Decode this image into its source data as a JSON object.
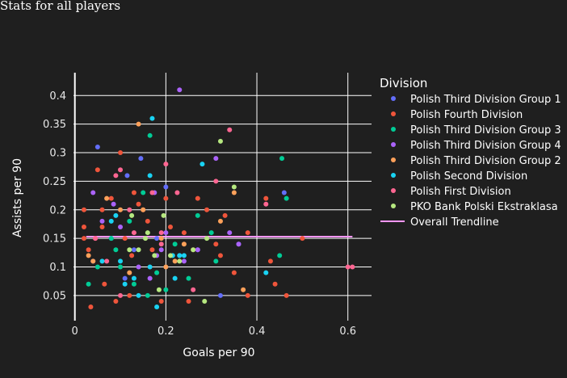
{
  "page_title": "Stats for all players",
  "chart_data": {
    "type": "scatter",
    "title": "Stats for all players",
    "xlabel": "Goals per 90",
    "ylabel": "Assists per 90",
    "xlim": [
      -0.003,
      0.652
    ],
    "ylim": [
      0.006,
      0.44
    ],
    "x_ticks": [
      0,
      0.2,
      0.4,
      0.6
    ],
    "x_tick_labels": [
      "0",
      "0.2",
      "0.4",
      "0.6"
    ],
    "y_ticks": [
      0.05,
      0.1,
      0.15,
      0.2,
      0.25,
      0.3,
      0.35,
      0.4
    ],
    "y_tick_labels": [
      "0.05",
      "0.1",
      "0.15",
      "0.2",
      "0.25",
      "0.3",
      "0.35",
      "0.4"
    ],
    "grid": true,
    "legend_title": "Division",
    "legend_position": "right",
    "series": [
      {
        "name": "Polish Third Division Group 1",
        "color": "#636efa",
        "points": [
          [
            0.05,
            0.31
          ],
          [
            0.115,
            0.26
          ],
          [
            0.145,
            0.29
          ],
          [
            0.2,
            0.24
          ],
          [
            0.46,
            0.23
          ],
          [
            0.08,
            0.15
          ],
          [
            0.04,
            0.11
          ],
          [
            0.13,
            0.13
          ],
          [
            0.18,
            0.15
          ],
          [
            0.23,
            0.12
          ],
          [
            0.32,
            0.05
          ],
          [
            0.36,
            0.14
          ],
          [
            0.11,
            0.08
          ],
          [
            0.27,
            0.13
          ]
        ]
      },
      {
        "name": "Polish Fourth Division",
        "color": "#ef553b",
        "points": [
          [
            0.02,
            0.2
          ],
          [
            0.02,
            0.15
          ],
          [
            0.02,
            0.17
          ],
          [
            0.035,
            0.03
          ],
          [
            0.05,
            0.27
          ],
          [
            0.06,
            0.17
          ],
          [
            0.08,
            0.22
          ],
          [
            0.09,
            0.04
          ],
          [
            0.1,
            0.3
          ],
          [
            0.11,
            0.15
          ],
          [
            0.12,
            0.05
          ],
          [
            0.125,
            0.12
          ],
          [
            0.13,
            0.23
          ],
          [
            0.14,
            0.21
          ],
          [
            0.15,
            0.2
          ],
          [
            0.16,
            0.18
          ],
          [
            0.19,
            0.04
          ],
          [
            0.2,
            0.22
          ],
          [
            0.21,
            0.17
          ],
          [
            0.24,
            0.16
          ],
          [
            0.25,
            0.04
          ],
          [
            0.26,
            0.13
          ],
          [
            0.27,
            0.22
          ],
          [
            0.29,
            0.2
          ],
          [
            0.31,
            0.14
          ],
          [
            0.32,
            0.12
          ],
          [
            0.33,
            0.19
          ],
          [
            0.35,
            0.09
          ],
          [
            0.38,
            0.05
          ],
          [
            0.38,
            0.16
          ],
          [
            0.42,
            0.22
          ],
          [
            0.43,
            0.11
          ],
          [
            0.44,
            0.07
          ],
          [
            0.465,
            0.05
          ],
          [
            0.5,
            0.15
          ],
          [
            0.065,
            0.07
          ],
          [
            0.17,
            0.13
          ],
          [
            0.06,
            0.2
          ],
          [
            0.03,
            0.13
          ],
          [
            0.045,
            0.15
          ]
        ]
      },
      {
        "name": "Polish Third Division Group 3",
        "color": "#00cc96",
        "points": [
          [
            0.03,
            0.07
          ],
          [
            0.05,
            0.1
          ],
          [
            0.08,
            0.15
          ],
          [
            0.1,
            0.1
          ],
          [
            0.12,
            0.18
          ],
          [
            0.13,
            0.07
          ],
          [
            0.15,
            0.23
          ],
          [
            0.165,
            0.33
          ],
          [
            0.18,
            0.09
          ],
          [
            0.2,
            0.06
          ],
          [
            0.22,
            0.14
          ],
          [
            0.25,
            0.08
          ],
          [
            0.27,
            0.19
          ],
          [
            0.3,
            0.16
          ],
          [
            0.31,
            0.11
          ],
          [
            0.45,
            0.12
          ],
          [
            0.455,
            0.29
          ],
          [
            0.465,
            0.22
          ],
          [
            0.16,
            0.05
          ],
          [
            0.09,
            0.13
          ]
        ]
      },
      {
        "name": "Polish Third Division Group 4",
        "color": "#ab63fa",
        "points": [
          [
            0.23,
            0.41
          ],
          [
            0.04,
            0.23
          ],
          [
            0.06,
            0.18
          ],
          [
            0.085,
            0.21
          ],
          [
            0.14,
            0.1
          ],
          [
            0.165,
            0.08
          ],
          [
            0.175,
            0.23
          ],
          [
            0.18,
            0.12
          ],
          [
            0.19,
            0.13
          ],
          [
            0.24,
            0.11
          ],
          [
            0.27,
            0.13
          ],
          [
            0.31,
            0.29
          ],
          [
            0.36,
            0.14
          ],
          [
            0.34,
            0.16
          ],
          [
            0.2,
            0.16
          ],
          [
            0.1,
            0.17
          ]
        ]
      },
      {
        "name": "Polish Third Division Group 2",
        "color": "#ffa15a",
        "points": [
          [
            0.03,
            0.12
          ],
          [
            0.04,
            0.11
          ],
          [
            0.07,
            0.22
          ],
          [
            0.1,
            0.2
          ],
          [
            0.14,
            0.35
          ],
          [
            0.15,
            0.2
          ],
          [
            0.19,
            0.15
          ],
          [
            0.22,
            0.11
          ],
          [
            0.24,
            0.14
          ],
          [
            0.32,
            0.18
          ],
          [
            0.35,
            0.23
          ],
          [
            0.37,
            0.06
          ],
          [
            0.2,
            0.1
          ],
          [
            0.12,
            0.09
          ]
        ]
      },
      {
        "name": "Polish Second Division",
        "color": "#19d3f3",
        "points": [
          [
            0.17,
            0.36
          ],
          [
            0.165,
            0.26
          ],
          [
            0.28,
            0.28
          ],
          [
            0.09,
            0.19
          ],
          [
            0.08,
            0.18
          ],
          [
            0.1,
            0.11
          ],
          [
            0.11,
            0.07
          ],
          [
            0.13,
            0.08
          ],
          [
            0.165,
            0.1
          ],
          [
            0.18,
            0.03
          ],
          [
            0.215,
            0.12
          ],
          [
            0.23,
            0.12
          ],
          [
            0.24,
            0.12
          ],
          [
            0.42,
            0.09
          ],
          [
            0.22,
            0.08
          ],
          [
            0.06,
            0.11
          ],
          [
            0.14,
            0.05
          ]
        ]
      },
      {
        "name": "Polish First Division",
        "color": "#ff6692",
        "points": [
          [
            0.34,
            0.34
          ],
          [
            0.2,
            0.28
          ],
          [
            0.31,
            0.25
          ],
          [
            0.1,
            0.27
          ],
          [
            0.09,
            0.26
          ],
          [
            0.045,
            0.15
          ],
          [
            0.12,
            0.2
          ],
          [
            0.13,
            0.16
          ],
          [
            0.17,
            0.23
          ],
          [
            0.19,
            0.16
          ],
          [
            0.19,
            0.14
          ],
          [
            0.225,
            0.23
          ],
          [
            0.42,
            0.21
          ],
          [
            0.6,
            0.1
          ],
          [
            0.61,
            0.1
          ],
          [
            0.07,
            0.11
          ],
          [
            0.1,
            0.05
          ],
          [
            0.26,
            0.06
          ]
        ]
      },
      {
        "name": "PKO Bank Polski Ekstraklasa",
        "color": "#b6e880",
        "points": [
          [
            0.32,
            0.32
          ],
          [
            0.35,
            0.24
          ],
          [
            0.12,
            0.13
          ],
          [
            0.14,
            0.13
          ],
          [
            0.155,
            0.15
          ],
          [
            0.175,
            0.12
          ],
          [
            0.185,
            0.06
          ],
          [
            0.195,
            0.19
          ],
          [
            0.21,
            0.12
          ],
          [
            0.23,
            0.11
          ],
          [
            0.26,
            0.13
          ],
          [
            0.285,
            0.04
          ],
          [
            0.29,
            0.15
          ],
          [
            0.125,
            0.19
          ],
          [
            0.16,
            0.16
          ]
        ]
      }
    ],
    "trendline": {
      "name": "Overall Trendline",
      "color": "#ff97ff",
      "points": [
        [
          0.025,
          0.153
        ],
        [
          0.61,
          0.153
        ]
      ]
    }
  }
}
